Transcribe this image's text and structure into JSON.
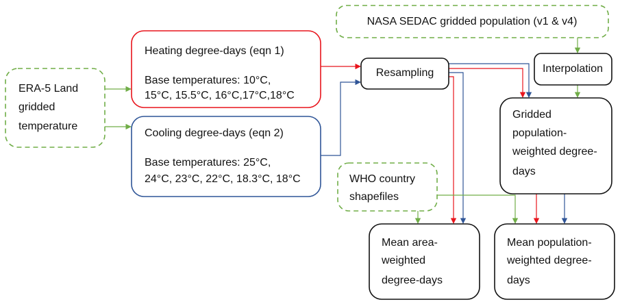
{
  "nodes": [
    {
      "lines": [
        "ERA-5 Land",
        "gridded",
        "temperature"
      ]
    },
    {
      "lines": [
        "Heating degree-days (eqn 1)",
        "Base temperatures: 10°C,",
        "15°C, 15.5°C, 16°C,17°C,18°C"
      ]
    },
    {
      "lines": [
        "Cooling degree-days (eqn 2)",
        "Base temperatures: 25°C,",
        "24°C, 23°C, 22°C, 18.3°C, 18°C"
      ]
    },
    {
      "lines": [
        "Resampling"
      ]
    },
    {
      "lines": [
        "NASA SEDAC gridded population (v1 & v4)"
      ]
    },
    {
      "lines": [
        "Interpolation"
      ]
    },
    {
      "lines": [
        "Gridded",
        "population-",
        "weighted degree-",
        "days"
      ]
    },
    {
      "lines": [
        "WHO country",
        "shapefiles"
      ]
    },
    {
      "lines": [
        "Mean area-",
        "weighted",
        "degree-days"
      ]
    },
    {
      "lines": [
        "Mean population-",
        "weighted degree-",
        "days"
      ]
    }
  ]
}
